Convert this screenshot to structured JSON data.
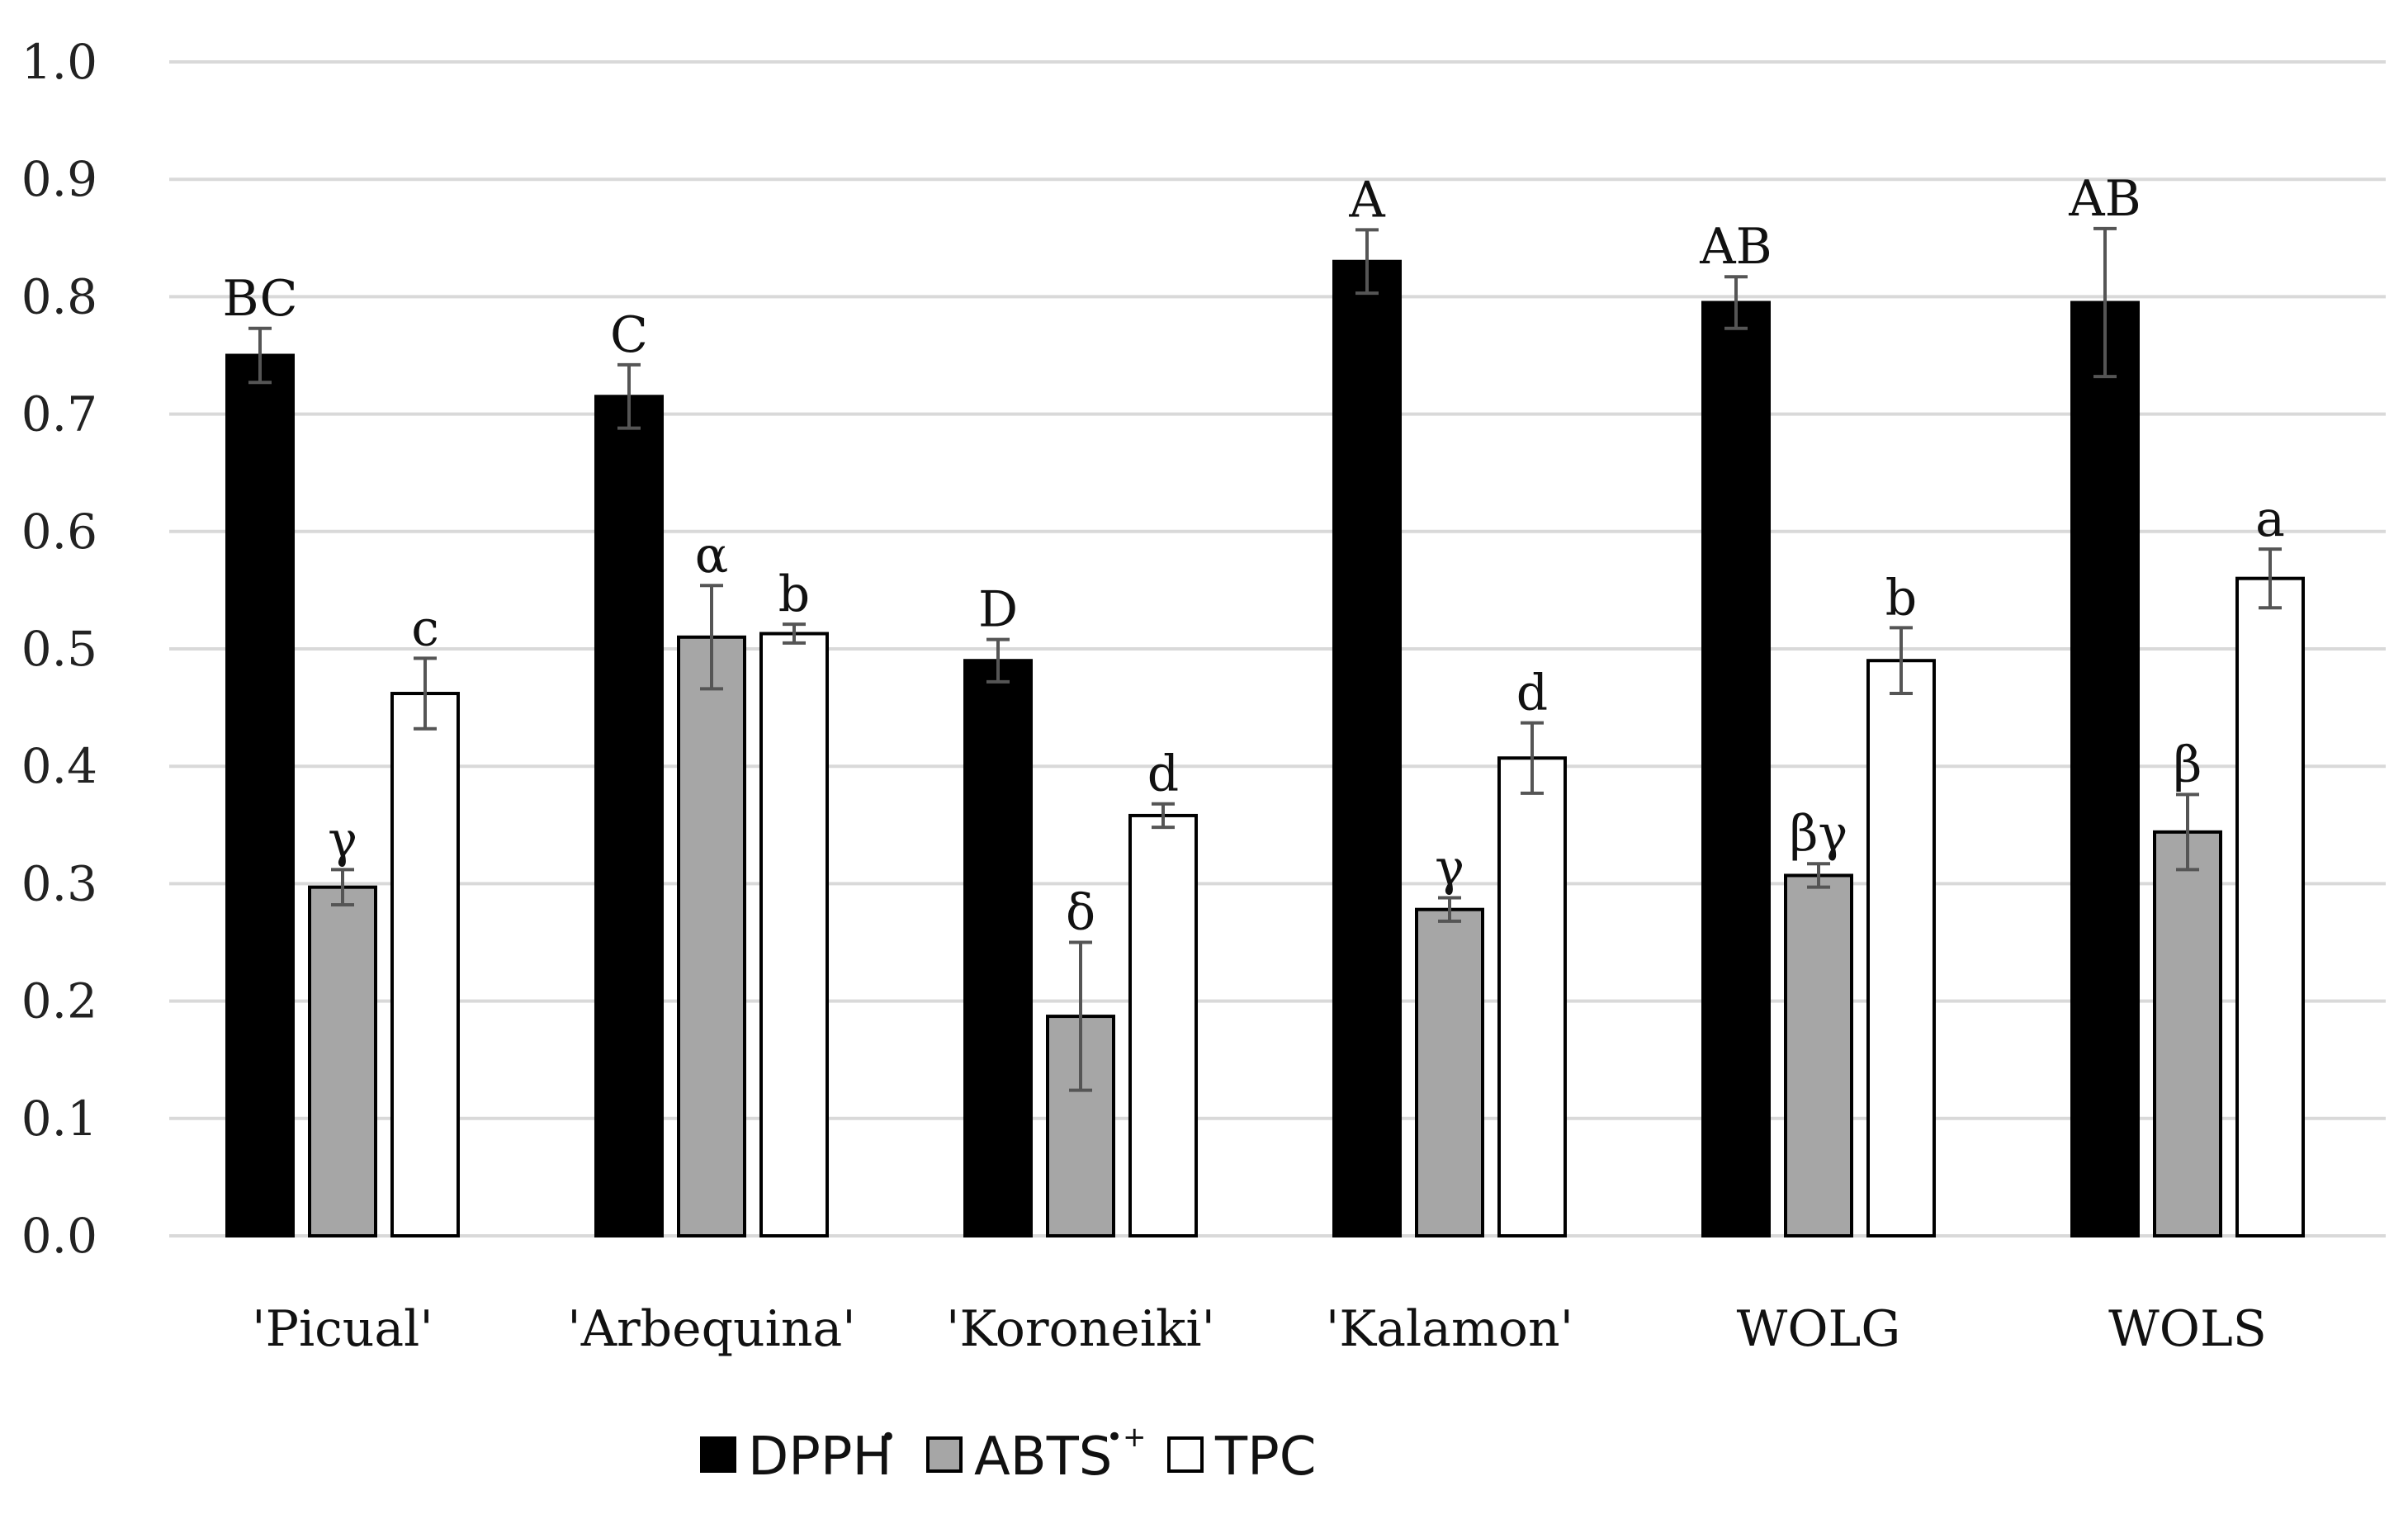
{
  "chart_data": {
    "type": "bar",
    "title": "",
    "xlabel": "",
    "ylabel": "",
    "ylim": [
      0,
      1.0
    ],
    "yticks": [
      "0.0",
      "0.1",
      "0.2",
      "0.3",
      "0.4",
      "0.5",
      "0.6",
      "0.7",
      "0.8",
      "0.9",
      "1.0"
    ],
    "grid": true,
    "legend_position": "bottom",
    "categories": [
      "'Picual'",
      "'Arbequina'",
      "'Koroneiki'",
      "'Kalamon'",
      "WOLG",
      "WOLS"
    ],
    "series": [
      {
        "name": "DPPH",
        "name_sup": "•",
        "color": "#000000",
        "values": [
          0.75,
          0.715,
          0.49,
          0.83,
          0.795,
          0.795
        ],
        "errors": [
          0.023,
          0.027,
          0.018,
          0.027,
          0.022,
          0.063
        ],
        "labels": [
          "BC",
          "C",
          "D",
          "A",
          "AB",
          "AB"
        ]
      },
      {
        "name": "ABTS",
        "name_sup": "•+",
        "color": "#a6a6a6",
        "values": [
          0.297,
          0.51,
          0.187,
          0.278,
          0.307,
          0.344
        ],
        "errors": [
          0.015,
          0.044,
          0.063,
          0.01,
          0.01,
          0.032
        ],
        "labels": [
          "γ",
          "α",
          "δ",
          "γ",
          "βγ",
          "β"
        ]
      },
      {
        "name": "TPC",
        "name_sup": "",
        "color": "#ffffff",
        "values": [
          0.462,
          0.513,
          0.358,
          0.407,
          0.49,
          0.56
        ],
        "errors": [
          0.03,
          0.008,
          0.01,
          0.03,
          0.028,
          0.025
        ],
        "labels": [
          "c",
          "b",
          "d",
          "d",
          "b",
          "a"
        ]
      }
    ]
  }
}
